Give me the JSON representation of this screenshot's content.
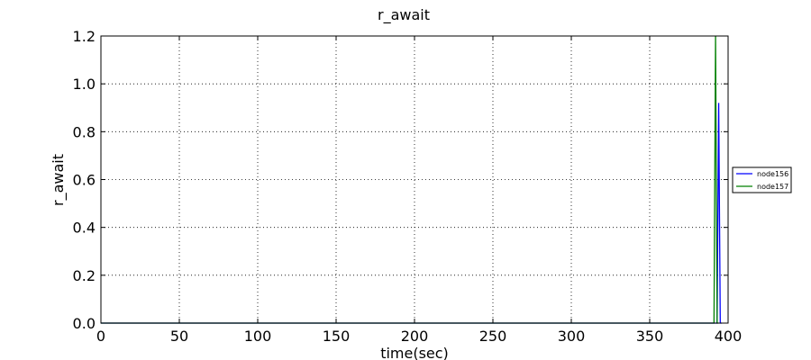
{
  "chart_data": {
    "type": "line",
    "title": "r_await",
    "xlabel": "time(sec)",
    "ylabel": "r_await",
    "xlim": [
      0,
      400
    ],
    "ylim": [
      0,
      1.2
    ],
    "xticks": [
      0,
      50,
      100,
      150,
      200,
      250,
      300,
      350,
      400
    ],
    "yticks": [
      0.0,
      0.2,
      0.4,
      0.6,
      0.8,
      1.0,
      1.2
    ],
    "ytick_labels": [
      "0.0",
      "0.2",
      "0.4",
      "0.6",
      "0.8",
      "1.0",
      "1.2"
    ],
    "grid": true,
    "legend_position": "right",
    "series": [
      {
        "name": "node156",
        "color": "#0000ff",
        "x": [
          0,
          392,
          393,
          394,
          395,
          396
        ],
        "y": [
          0,
          0,
          0,
          0.92,
          0,
          0
        ]
      },
      {
        "name": "node157",
        "color": "#008000",
        "x": [
          0,
          391,
          392,
          393,
          394
        ],
        "y": [
          0,
          0,
          1.2,
          0,
          0
        ]
      }
    ]
  }
}
